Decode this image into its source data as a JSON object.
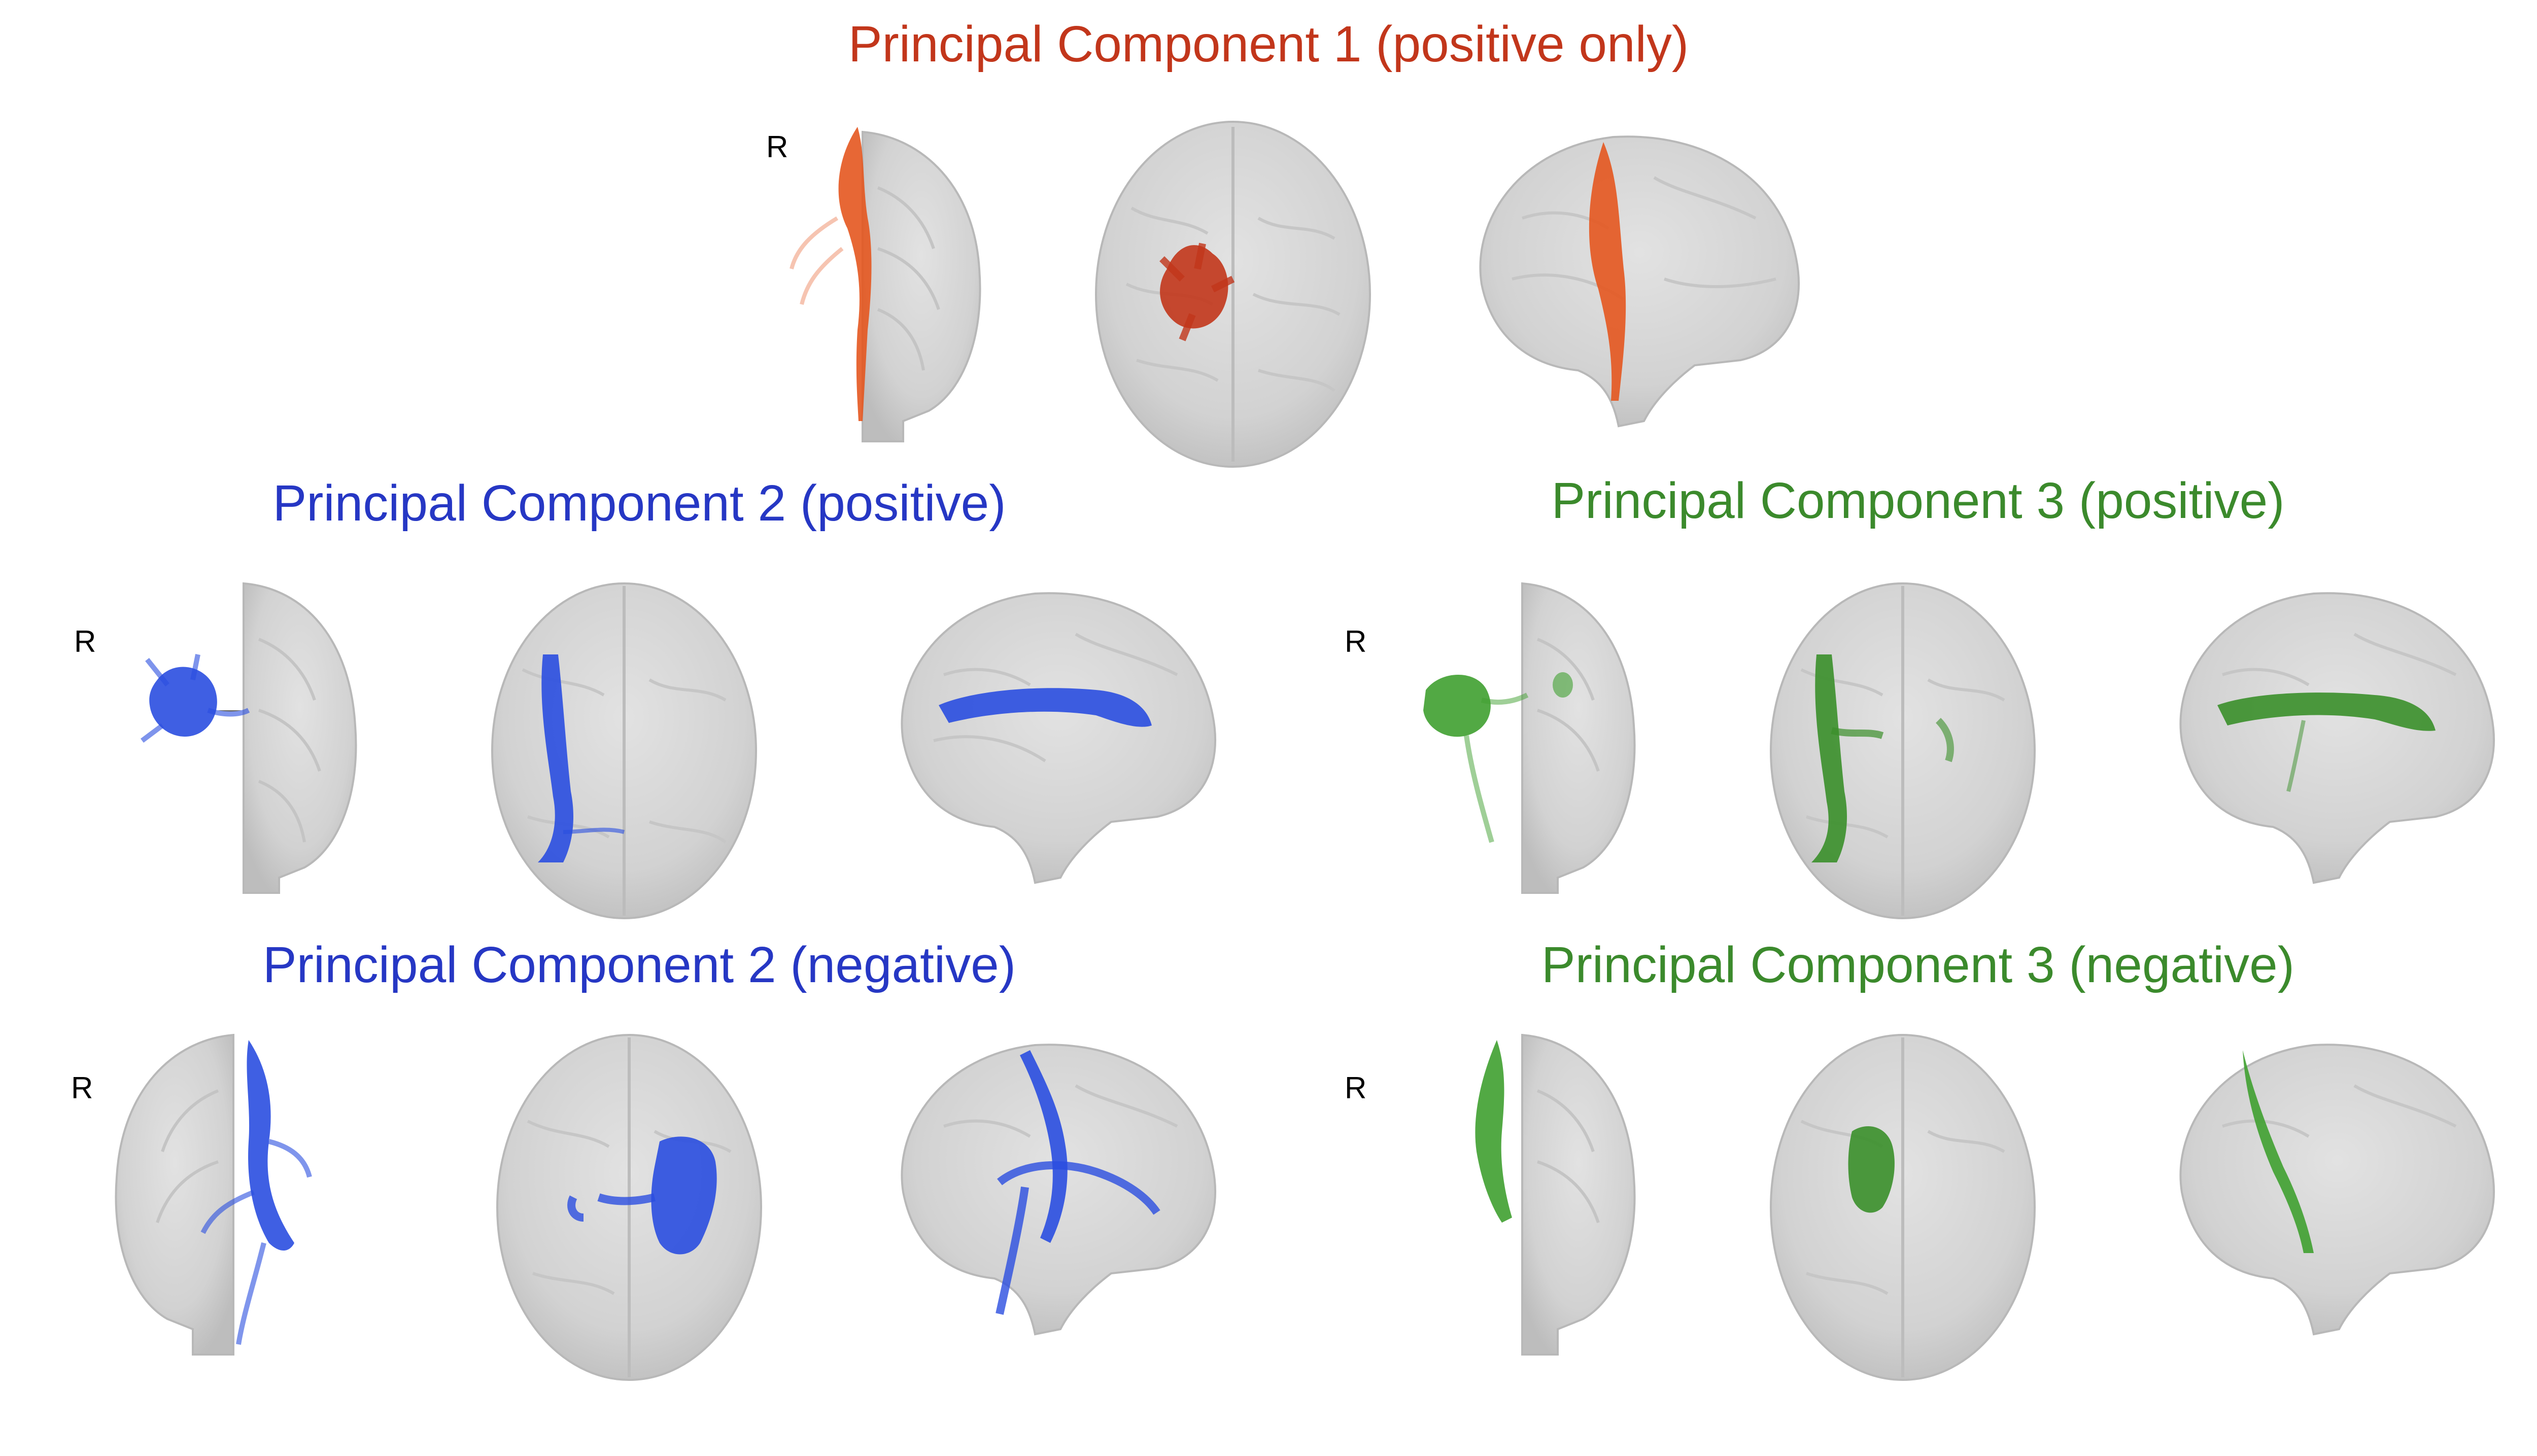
{
  "colors": {
    "pc1": "#c2361b",
    "pc2": "#2637c4",
    "pc3": "#3b8a2c",
    "brain_fill": "#d6d6d6",
    "brain_edge": "#b8b8b8"
  },
  "orientation_label": "R",
  "panels": {
    "pc1": {
      "title": "Principal Component 1 (positive only)",
      "views": [
        "coronal",
        "axial",
        "sagittal"
      ]
    },
    "pc2_positive": {
      "title": "Principal Component 2 (positive)",
      "views": [
        "coronal",
        "axial",
        "sagittal"
      ]
    },
    "pc3_positive": {
      "title": "Principal Component 3 (positive)",
      "views": [
        "coronal",
        "axial",
        "sagittal"
      ]
    },
    "pc2_negative": {
      "title": "Principal Component 2 (negative)",
      "views": [
        "coronal",
        "axial",
        "sagittal"
      ]
    },
    "pc3_negative": {
      "title": "Principal Component 3 (negative)",
      "views": [
        "coronal",
        "axial",
        "sagittal"
      ]
    }
  }
}
